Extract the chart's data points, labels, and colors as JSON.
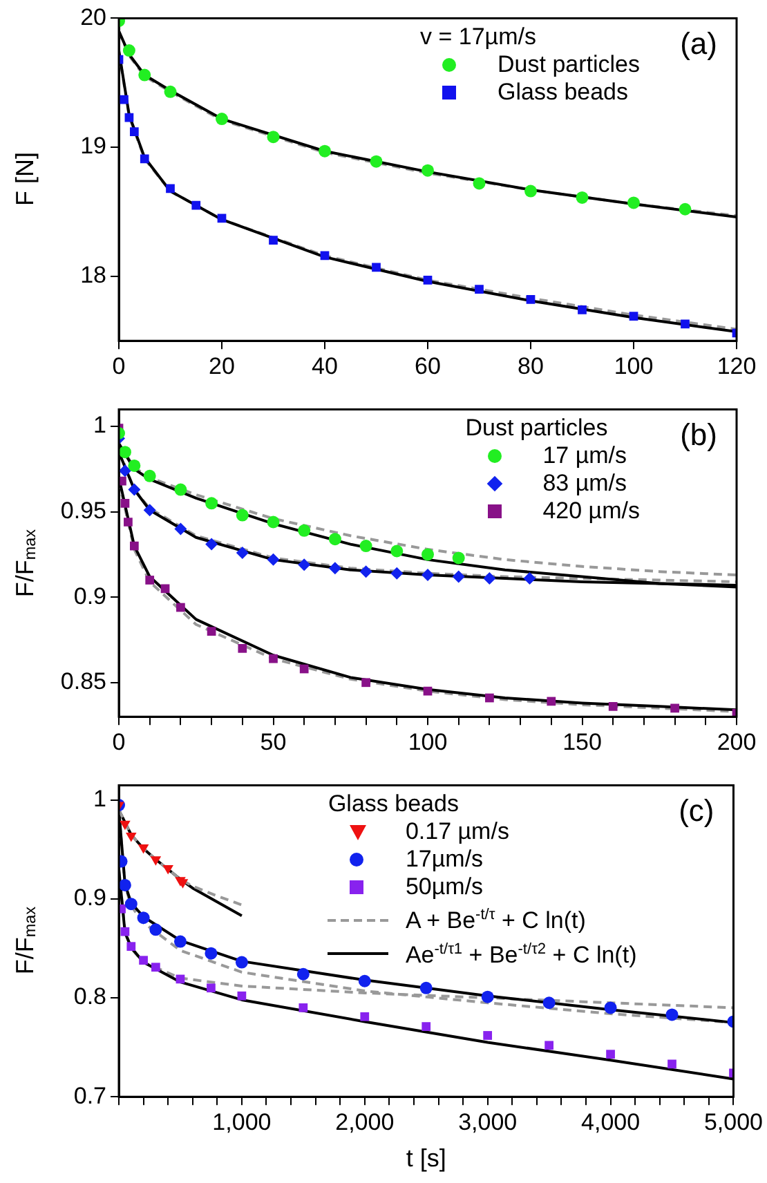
{
  "chart_data": [
    {
      "type": "scatter",
      "ylabel": "F [N]",
      "legend_title": "v = 17µm/s",
      "legend": "top right",
      "annotations": [
        "(a)"
      ],
      "xlim": [
        0,
        120
      ],
      "ylim": [
        17.5,
        20
      ],
      "xticks": [
        0,
        20,
        40,
        60,
        80,
        100,
        120
      ],
      "yticks": [
        18,
        19,
        20
      ],
      "series": [
        {
          "name": "Dust particles",
          "type": "scatter",
          "marker": "circle",
          "color": "#22ee22",
          "x": [
            0,
            2,
            5,
            10,
            20,
            30,
            40,
            50,
            60,
            70,
            80,
            90,
            100,
            110
          ],
          "values": [
            19.98,
            19.75,
            19.56,
            19.43,
            19.22,
            19.08,
            18.97,
            18.89,
            18.82,
            18.72,
            18.66,
            18.61,
            18.57,
            18.52
          ]
        },
        {
          "name": "Glass beads",
          "type": "scatter",
          "marker": "square",
          "color": "#1111ee",
          "x": [
            0,
            1,
            2,
            3,
            5,
            10,
            15,
            20,
            30,
            40,
            50,
            60,
            70,
            80,
            90,
            100,
            110,
            120
          ],
          "values": [
            19.68,
            19.37,
            19.23,
            19.12,
            18.91,
            18.68,
            18.55,
            18.45,
            18.28,
            18.16,
            18.07,
            17.97,
            17.9,
            17.82,
            17.74,
            17.69,
            17.63,
            17.56
          ]
        },
        {
          "type": "line",
          "line_style": "solid",
          "color": "#000000",
          "x": [
            0,
            2,
            5,
            10,
            20,
            40,
            60,
            80,
            100,
            120
          ],
          "values": [
            19.9,
            19.72,
            19.56,
            19.44,
            19.22,
            18.97,
            18.81,
            18.67,
            18.56,
            18.46
          ]
        },
        {
          "type": "line",
          "line_style": "dashed",
          "color": "#999999",
          "x": [
            0,
            2,
            5,
            10,
            20,
            40,
            60,
            80,
            100,
            120
          ],
          "values": [
            19.9,
            19.71,
            19.55,
            19.43,
            19.21,
            18.96,
            18.8,
            18.67,
            18.56,
            18.47
          ]
        },
        {
          "type": "line",
          "line_style": "solid",
          "color": "#000000",
          "x": [
            0,
            2,
            5,
            10,
            20,
            40,
            60,
            80,
            100,
            120
          ],
          "values": [
            19.75,
            19.25,
            18.92,
            18.66,
            18.44,
            18.15,
            17.96,
            17.81,
            17.68,
            17.57
          ]
        },
        {
          "type": "line",
          "line_style": "dashed",
          "color": "#999999",
          "x": [
            0,
            2,
            5,
            10,
            20,
            40,
            60,
            80,
            100,
            120
          ],
          "values": [
            19.74,
            19.24,
            18.91,
            18.66,
            18.44,
            18.16,
            17.97,
            17.83,
            17.7,
            17.59
          ]
        }
      ]
    },
    {
      "type": "scatter",
      "ylabel": "F/F$_{max}$",
      "legend_title": "Dust particles",
      "legend": "top right",
      "annotations": [
        "(b)"
      ],
      "xlim": [
        0,
        200
      ],
      "ylim": [
        0.83,
        1.01
      ],
      "xticks": [
        0,
        {
          "value": 10,
          "label": null
        },
        {
          "value": 20,
          "label": null
        },
        {
          "value": 30,
          "label": null
        },
        {
          "value": 40,
          "label": null
        },
        50,
        {
          "value": 60,
          "label": null
        },
        {
          "value": 70,
          "label": null
        },
        {
          "value": 80,
          "label": null
        },
        {
          "value": 90,
          "label": null
        },
        100,
        {
          "value": 110,
          "label": null
        },
        {
          "value": 120,
          "label": null
        },
        {
          "value": 130,
          "label": null
        },
        {
          "value": 140,
          "label": null
        },
        150,
        {
          "value": 160,
          "label": null
        },
        {
          "value": 170,
          "label": null
        },
        {
          "value": 180,
          "label": null
        },
        {
          "value": 190,
          "label": null
        },
        200
      ],
      "yticks": [
        0.85,
        0.9,
        0.95,
        1
      ],
      "series": [
        {
          "name": "17 µm/s",
          "type": "scatter",
          "marker": "circle",
          "color": "#22ee22",
          "x": [
            0,
            2,
            5,
            10,
            20,
            30,
            40,
            50,
            60,
            70,
            80,
            90,
            100,
            110
          ],
          "values": [
            0.996,
            0.985,
            0.977,
            0.971,
            0.963,
            0.955,
            0.948,
            0.944,
            0.939,
            0.934,
            0.93,
            0.927,
            0.925,
            0.923
          ]
        },
        {
          "name": "83 µm/s",
          "type": "scatter",
          "marker": "diamond",
          "color": "#1122ee",
          "x": [
            0,
            2,
            5,
            10,
            20,
            30,
            40,
            50,
            60,
            70,
            80,
            90,
            100,
            110,
            120,
            133
          ],
          "values": [
            0.993,
            0.974,
            0.963,
            0.951,
            0.94,
            0.931,
            0.926,
            0.922,
            0.919,
            0.917,
            0.915,
            0.914,
            0.913,
            0.912,
            0.911,
            0.911
          ]
        },
        {
          "name": "420 µm/s",
          "type": "scatter",
          "marker": "square",
          "color": "#881188",
          "x": [
            0,
            1,
            2,
            3,
            5,
            10,
            15,
            20,
            30,
            40,
            50,
            60,
            80,
            100,
            120,
            140,
            160,
            180,
            200
          ],
          "values": [
            0.999,
            0.968,
            0.955,
            0.944,
            0.93,
            0.91,
            0.905,
            0.894,
            0.88,
            0.87,
            0.864,
            0.858,
            0.85,
            0.845,
            0.841,
            0.839,
            0.836,
            0.835,
            0.832
          ]
        },
        {
          "type": "line",
          "line_style": "solid",
          "color": "#000000",
          "x": [
            0,
            5,
            10,
            25,
            50,
            75,
            100,
            125,
            150,
            175,
            200
          ],
          "values": [
            0.99,
            0.975,
            0.969,
            0.958,
            0.943,
            0.931,
            0.922,
            0.916,
            0.912,
            0.908,
            0.906
          ]
        },
        {
          "type": "line",
          "line_style": "dashed",
          "color": "#999999",
          "x": [
            0,
            5,
            10,
            25,
            50,
            75,
            100,
            125,
            150,
            175,
            200
          ],
          "values": [
            0.99,
            0.976,
            0.97,
            0.96,
            0.946,
            0.936,
            0.928,
            0.922,
            0.918,
            0.915,
            0.913
          ]
        },
        {
          "type": "line",
          "line_style": "solid",
          "color": "#000000",
          "x": [
            0,
            5,
            10,
            25,
            50,
            75,
            100,
            125,
            150,
            175,
            200
          ],
          "values": [
            0.985,
            0.963,
            0.951,
            0.935,
            0.922,
            0.916,
            0.913,
            0.911,
            0.909,
            0.908,
            0.907
          ]
        },
        {
          "type": "line",
          "line_style": "dashed",
          "color": "#999999",
          "x": [
            0,
            5,
            10,
            25,
            50,
            75,
            100,
            125,
            150,
            175,
            200
          ],
          "values": [
            0.986,
            0.963,
            0.952,
            0.936,
            0.923,
            0.917,
            0.914,
            0.912,
            0.911,
            0.91,
            0.909
          ]
        },
        {
          "type": "line",
          "line_style": "solid",
          "color": "#000000",
          "x": [
            0,
            5,
            10,
            25,
            50,
            75,
            100,
            125,
            150,
            175,
            200
          ],
          "values": [
            0.97,
            0.93,
            0.912,
            0.887,
            0.866,
            0.853,
            0.846,
            0.841,
            0.838,
            0.836,
            0.834
          ]
        },
        {
          "type": "line",
          "line_style": "dashed",
          "color": "#999999",
          "x": [
            0,
            5,
            10,
            25,
            50,
            75,
            100,
            125,
            150,
            175,
            200
          ],
          "values": [
            0.968,
            0.928,
            0.909,
            0.884,
            0.864,
            0.852,
            0.845,
            0.84,
            0.837,
            0.835,
            0.833
          ]
        }
      ]
    },
    {
      "type": "scatter",
      "xlabel": "t [s]",
      "ylabel": "F/F$_{max}$",
      "legend_title": "Glass beads",
      "legend": "top right",
      "annotations": [
        "(c)"
      ],
      "xlim": [
        0,
        5000
      ],
      "ylim": [
        0.7,
        1.015
      ],
      "xticks": [
        {
          "value": 0,
          "label": null
        },
        {
          "value": 200,
          "label": null
        },
        {
          "value": 400,
          "label": null
        },
        {
          "value": 600,
          "label": null
        },
        {
          "value": 800,
          "label": null
        },
        {
          "value": 1000,
          "label": "1,000"
        },
        {
          "value": 1200,
          "label": null
        },
        {
          "value": 1400,
          "label": null
        },
        {
          "value": 1600,
          "label": null
        },
        {
          "value": 1800,
          "label": null
        },
        {
          "value": 2000,
          "label": "2,000"
        },
        {
          "value": 2200,
          "label": null
        },
        {
          "value": 2400,
          "label": null
        },
        {
          "value": 2600,
          "label": null
        },
        {
          "value": 2800,
          "label": null
        },
        {
          "value": 3000,
          "label": "3,000"
        },
        {
          "value": 3200,
          "label": null
        },
        {
          "value": 3400,
          "label": null
        },
        {
          "value": 3600,
          "label": null
        },
        {
          "value": 3800,
          "label": null
        },
        {
          "value": 4000,
          "label": "4,000"
        },
        {
          "value": 4200,
          "label": null
        },
        {
          "value": 4400,
          "label": null
        },
        {
          "value": 4600,
          "label": null
        },
        {
          "value": 4800,
          "label": null
        },
        {
          "value": 5000,
          "label": "5,000"
        }
      ],
      "yticks": [
        0.7,
        0.8,
        0.9,
        1
      ],
      "series": [
        {
          "name": "0.17 µm/s",
          "type": "scatter",
          "marker": "triangle",
          "color": "#ee1111",
          "x": [
            0,
            50,
            100,
            200,
            300,
            400,
            500,
            520
          ],
          "values": [
            0.995,
            0.976,
            0.964,
            0.952,
            0.94,
            0.931,
            0.919,
            0.917
          ]
        },
        {
          "name": "17µm/s",
          "type": "scatter",
          "marker": "circle",
          "color": "#1122ee",
          "x": [
            0,
            20,
            50,
            100,
            200,
            300,
            500,
            750,
            1000,
            1500,
            2000,
            2500,
            3000,
            3500,
            4000,
            4500,
            5000
          ],
          "values": [
            0.995,
            0.938,
            0.914,
            0.895,
            0.881,
            0.869,
            0.857,
            0.845,
            0.836,
            0.824,
            0.817,
            0.81,
            0.801,
            0.795,
            0.79,
            0.783,
            0.776
          ]
        },
        {
          "name": "50µm/s",
          "type": "scatter",
          "marker": "square",
          "color": "#8822ee",
          "x": [
            20,
            50,
            100,
            200,
            300,
            500,
            750,
            1000,
            1500,
            2000,
            2500,
            3000,
            3500,
            4000,
            4500,
            5000
          ],
          "values": [
            0.89,
            0.867,
            0.852,
            0.838,
            0.831,
            0.819,
            0.81,
            0.802,
            0.79,
            0.781,
            0.771,
            0.762,
            0.752,
            0.743,
            0.733,
            0.724
          ]
        },
        {
          "name": "A + Be$^{-t/τ}$ + C ln(t)",
          "type": "line",
          "line_style": "dashed",
          "color": "#999999",
          "x": [
            0,
            100,
            200,
            300,
            400,
            500,
            600,
            800,
            1000
          ],
          "values": [
            0.99,
            0.965,
            0.951,
            0.94,
            0.93,
            0.92,
            0.913,
            0.903,
            0.894
          ]
        },
        {
          "name": "Ae$^{-t/τ1}$ + Be$^{-t/τ2}$ + C ln(t)",
          "type": "line",
          "line_style": "solid",
          "color": "#000000",
          "x": [
            0,
            100,
            200,
            300,
            400,
            500,
            600,
            800,
            1000
          ],
          "values": [
            0.99,
            0.965,
            0.951,
            0.94,
            0.93,
            0.92,
            0.911,
            0.897,
            0.883
          ]
        },
        {
          "type": "line",
          "line_style": "solid",
          "color": "#000000",
          "x": [
            0,
            50,
            100,
            200,
            500,
            1000,
            2000,
            3000,
            4000,
            5000
          ],
          "values": [
            0.99,
            0.915,
            0.896,
            0.882,
            0.858,
            0.837,
            0.818,
            0.802,
            0.788,
            0.775
          ]
        },
        {
          "type": "line",
          "line_style": "dashed",
          "color": "#999999",
          "x": [
            0,
            50,
            100,
            200,
            500,
            1000,
            2000,
            3000,
            4000,
            5000
          ],
          "values": [
            0.99,
            0.914,
            0.893,
            0.876,
            0.848,
            0.826,
            0.807,
            0.795,
            0.784,
            0.775
          ]
        },
        {
          "type": "line",
          "line_style": "solid",
          "color": "#000000",
          "x": [
            0,
            50,
            100,
            200,
            500,
            1000,
            2000,
            3000,
            4000,
            5000
          ],
          "values": [
            0.93,
            0.866,
            0.851,
            0.836,
            0.816,
            0.798,
            0.776,
            0.755,
            0.737,
            0.718
          ]
        },
        {
          "type": "line",
          "line_style": "dashed",
          "color": "#999999",
          "x": [
            0,
            50,
            100,
            200,
            500,
            1000,
            2000,
            3000,
            4000,
            5000
          ],
          "values": [
            0.93,
            0.868,
            0.85,
            0.836,
            0.82,
            0.812,
            0.805,
            0.8,
            0.795,
            0.79
          ]
        }
      ]
    }
  ]
}
